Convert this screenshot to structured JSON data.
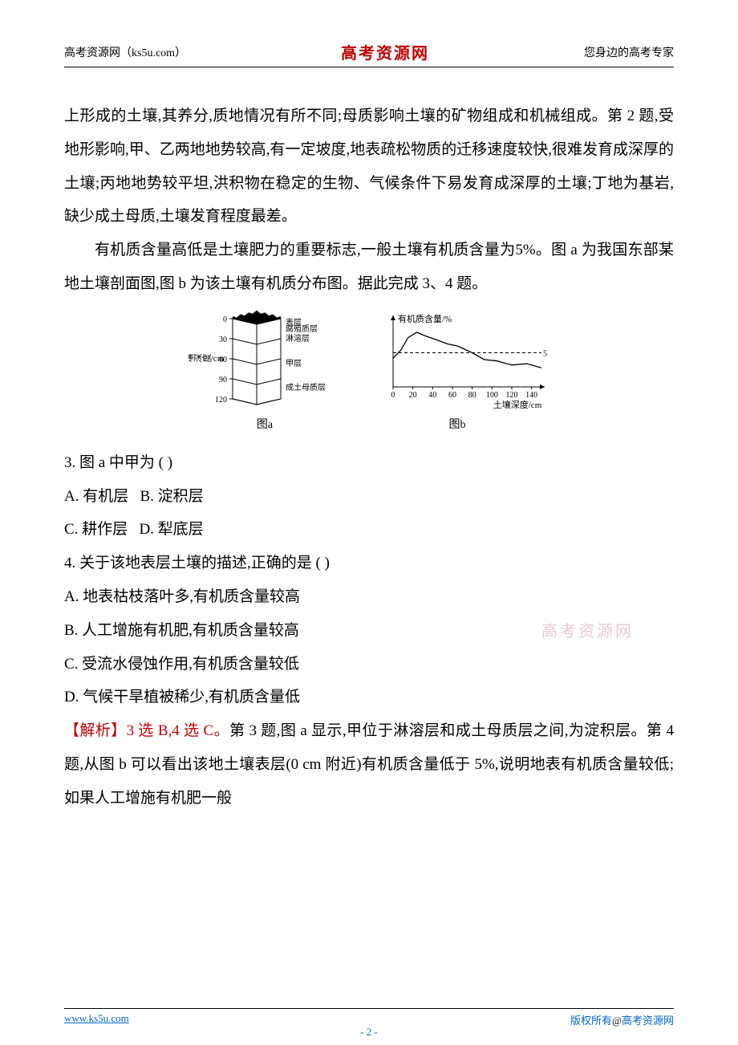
{
  "header": {
    "left": "高考资源网（ks5u.com）",
    "center": "高考资源网",
    "right": "您身边的高考专家"
  },
  "paragraphs": {
    "p1": "上形成的土壤,其养分,质地情况有所不同;母质影响土壤的矿物组成和机械组成。第 2 题,受地形影响,甲、乙两地地势较高,有一定坡度,地表疏松物质的迁移速度较快,很难发育成深厚的土壤;丙地地势较平坦,洪积物在稳定的生物、气候条件下易发育成深厚的土壤;丁地为基岩,缺少成土母质,土壤发育程度最差。",
    "p2": "有机质含量高低是土壤肥力的重要标志,一般土壤有机质含量为5%。图 a 为我国东部某地土壤剖面图,图 b 为该土壤有机质分布图。据此完成 3、4 题。"
  },
  "figure_a": {
    "caption": "图a",
    "y_axis_label": "土壤深度/cm",
    "y_ticks": [
      "0",
      "30",
      "60",
      "90",
      "120"
    ],
    "layers": [
      "表层",
      "腐殖质层",
      "淋溶层",
      "甲层",
      "成土母质层"
    ],
    "stroke": "#000000",
    "top_fill": "#000000"
  },
  "figure_b": {
    "caption": "图b",
    "type": "line",
    "y_axis_label": "有机质含量/%",
    "x_axis_label": "土壤深度/cm",
    "x_ticks": [
      "0",
      "20",
      "40",
      "60",
      "80",
      "100",
      "120",
      "140"
    ],
    "xlim": [
      0,
      150
    ],
    "ylim": [
      0,
      10
    ],
    "dash_y_value": 5,
    "dash_label": "5",
    "line_color": "#000000",
    "dash_color": "#000000",
    "background_color": "#ffffff",
    "axis_color": "#000000",
    "tick_fontsize": 10,
    "label_fontsize": 11,
    "points": [
      [
        0,
        4.2
      ],
      [
        8,
        5.4
      ],
      [
        15,
        7.2
      ],
      [
        24,
        8.0
      ],
      [
        32,
        7.5
      ],
      [
        42,
        7.0
      ],
      [
        55,
        6.3
      ],
      [
        65,
        6.0
      ],
      [
        80,
        5.0
      ],
      [
        92,
        4.0
      ],
      [
        105,
        3.8
      ],
      [
        120,
        3.2
      ],
      [
        135,
        3.4
      ],
      [
        150,
        2.8
      ]
    ]
  },
  "q3": {
    "stem": "3. 图 a 中甲为    (      )",
    "optA": "A. 有机层",
    "optB": "B. 淀积层",
    "optC": "C. 耕作层",
    "optD": "D. 犁底层"
  },
  "q4": {
    "stem": "4. 关于该地表层土壤的描述,正确的是    (      )",
    "optA": "A. 地表枯枝落叶多,有机质含量较高",
    "optB": "B. 人工增施有机肥,有机质含量较高",
    "optC": "C. 受流水侵蚀作用,有机质含量较低",
    "optD": "D. 气候干旱植被稀少,有机质含量低"
  },
  "analysis": {
    "label": "【解析】3 选 B,4 选 C。",
    "text": "第 3 题,图 a 显示,甲位于淋溶层和成土母质层之间,为淀积层。第 4 题,从图 b 可以看出该地土壤表层(0 cm 附近)有机质含量低于 5%,说明地表有机质含量较低;如果人工增施有机肥一般"
  },
  "watermark": "高考资源网",
  "footer": {
    "left": "www.ks5u.com",
    "center_prefix": "- ",
    "page": "2",
    "center_suffix": " -",
    "right_prefix": "版权所有",
    "right_at": "@",
    "right_suffix": "高考资源网"
  }
}
